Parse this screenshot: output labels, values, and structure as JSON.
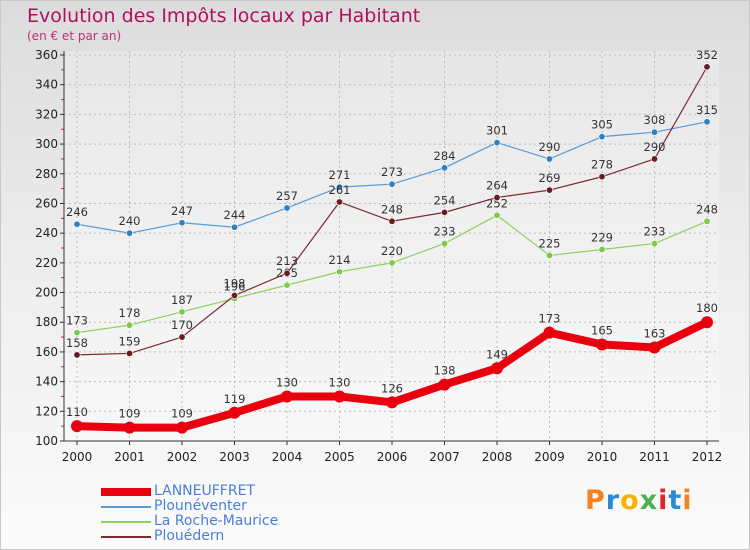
{
  "header": {
    "title": "Evolution des Impôts locaux par Habitant",
    "subtitle": "(en € et par an)"
  },
  "logo": {
    "text": "Proxiti",
    "letter_colors": [
      "#f58220",
      "#2a8ad4",
      "#f5b400",
      "#4caf50",
      "#e0242b",
      "#2a8ad4",
      "#f58220"
    ]
  },
  "chart_data": {
    "type": "line",
    "title": "Evolution des Impôts locaux par Habitant",
    "subtitle": "(en € et par an)",
    "xlabel": "",
    "ylabel": "",
    "x": [
      "2000",
      "2001",
      "2002",
      "2003",
      "2004",
      "2005",
      "2006",
      "2007",
      "2008",
      "2009",
      "2010",
      "2011",
      "2012"
    ],
    "ylim": [
      100,
      360
    ],
    "yticks": [
      100,
      120,
      140,
      160,
      180,
      200,
      220,
      240,
      260,
      280,
      300,
      320,
      340,
      360
    ],
    "grid": true,
    "legend_position": "bottom-left",
    "series": [
      {
        "name": "LANNEUFFRET",
        "color": "#e8000e",
        "emphasis": true,
        "values": [
          110,
          109,
          109,
          119,
          130,
          130,
          126,
          138,
          149,
          173,
          165,
          163,
          180
        ]
      },
      {
        "name": "Plounéventer",
        "color": "#5b9bd5",
        "point_color": "#2f7fc1",
        "emphasis": false,
        "values": [
          246,
          240,
          247,
          244,
          257,
          271,
          273,
          284,
          301,
          290,
          305,
          308,
          315
        ]
      },
      {
        "name": "La Roche-Maurice",
        "color": "#90d060",
        "point_color": "#7ec84a",
        "emphasis": false,
        "values": [
          173,
          178,
          187,
          196,
          205,
          214,
          220,
          233,
          252,
          225,
          229,
          233,
          248
        ]
      },
      {
        "name": "Plouédern",
        "color": "#7a2a30",
        "point_color": "#6a1a20",
        "emphasis": false,
        "values": [
          158,
          159,
          170,
          198,
          213,
          261,
          248,
          254,
          264,
          269,
          278,
          290,
          352
        ]
      }
    ]
  }
}
